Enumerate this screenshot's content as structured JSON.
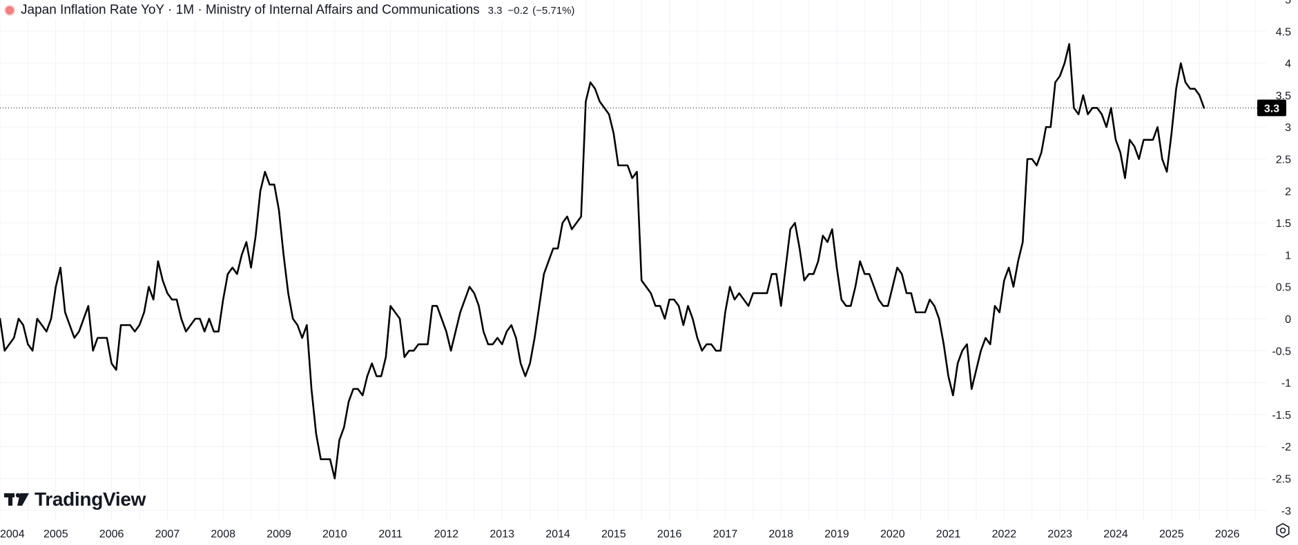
{
  "legend": {
    "title": "Japan Inflation Rate YoY · 1M · Ministry of Internal Affairs and Communications",
    "value": "3.3",
    "change": "−0.2",
    "change_pct": "(−5.71%)",
    "dot_color": "#ef5350"
  },
  "brand": {
    "name": "TradingView",
    "logo_icon": "tradingview-logo-icon"
  },
  "icons": {
    "settings": "settings-gear-icon"
  },
  "colors": {
    "line": "#000000",
    "grid": "#f0f3fa",
    "axis_text": "#131722",
    "price_label_bg": "#000000",
    "price_label_text": "#ffffff"
  },
  "chart_data": {
    "type": "line",
    "title": "Japan Inflation Rate YoY",
    "frequency": "1M",
    "source": "Ministry of Internal Affairs and Communications",
    "last_value": 3.3,
    "ylim": [
      -3.2,
      5.05
    ],
    "y_ticks": [
      "5",
      "4.5",
      "4",
      "3.5",
      "3",
      "2.5",
      "2",
      "1.5",
      "1",
      "0.5",
      "0",
      "-0.5",
      "-1",
      "-1.5",
      "-2",
      "-2.5",
      "-3"
    ],
    "x_ticks": [
      "2004",
      "2005",
      "2006",
      "2007",
      "2008",
      "2009",
      "2010",
      "2011",
      "2012",
      "2013",
      "2014",
      "2015",
      "2016",
      "2017",
      "2018",
      "2019",
      "2020",
      "2021",
      "2022",
      "2023",
      "2024",
      "2025",
      "2026"
    ],
    "grid": true,
    "series": [
      {
        "start_date": "2004-01",
        "values": [
          0.0,
          -0.5,
          -0.4,
          -0.3,
          0.0,
          -0.1,
          -0.4,
          -0.5,
          0.0,
          -0.1,
          -0.2,
          0.0,
          0.5,
          0.8,
          0.1,
          -0.1,
          -0.3,
          -0.2,
          0.0,
          0.2,
          -0.5,
          -0.3,
          -0.3,
          -0.3,
          -0.7,
          -0.8,
          -0.1,
          -0.1,
          -0.1,
          -0.2,
          -0.1,
          0.1,
          0.5,
          0.3,
          0.9,
          0.6,
          0.4,
          0.3,
          0.3,
          0.0,
          -0.2,
          -0.1,
          0.0,
          0.0,
          -0.2,
          0.0,
          -0.2,
          -0.2,
          0.3,
          0.7,
          0.8,
          0.7,
          1.0,
          1.2,
          0.8,
          1.3,
          2.0,
          2.3,
          2.1,
          2.1,
          1.7,
          1.0,
          0.4,
          0.0,
          -0.1,
          -0.3,
          -0.1,
          -1.1,
          -1.8,
          -2.2,
          -2.2,
          -2.2,
          -2.5,
          -1.9,
          -1.7,
          -1.3,
          -1.1,
          -1.1,
          -1.2,
          -0.9,
          -0.7,
          -0.9,
          -0.9,
          -0.6,
          0.2,
          0.1,
          0.0,
          -0.6,
          -0.5,
          -0.5,
          -0.4,
          -0.4,
          -0.4,
          0.2,
          0.2,
          0.0,
          -0.2,
          -0.5,
          -0.2,
          0.1,
          0.3,
          0.5,
          0.4,
          0.2,
          -0.2,
          -0.4,
          -0.4,
          -0.3,
          -0.4,
          -0.2,
          -0.1,
          -0.3,
          -0.7,
          -0.9,
          -0.7,
          -0.3,
          0.2,
          0.7,
          0.9,
          1.1,
          1.1,
          1.5,
          1.6,
          1.4,
          1.5,
          1.6,
          3.4,
          3.7,
          3.6,
          3.4,
          3.3,
          3.2,
          2.9,
          2.4,
          2.4,
          2.4,
          2.2,
          2.3,
          0.6,
          0.5,
          0.4,
          0.2,
          0.2,
          0.0,
          0.3,
          0.3,
          0.2,
          -0.1,
          0.2,
          0.0,
          -0.3,
          -0.5,
          -0.4,
          -0.4,
          -0.5,
          -0.5,
          0.1,
          0.5,
          0.3,
          0.4,
          0.3,
          0.2,
          0.4,
          0.4,
          0.4,
          0.4,
          0.7,
          0.7,
          0.2,
          0.8,
          1.4,
          1.5,
          1.1,
          0.6,
          0.7,
          0.7,
          0.9,
          1.3,
          1.2,
          1.4,
          0.8,
          0.3,
          0.2,
          0.2,
          0.5,
          0.9,
          0.7,
          0.7,
          0.5,
          0.3,
          0.2,
          0.2,
          0.5,
          0.8,
          0.7,
          0.4,
          0.4,
          0.1,
          0.1,
          0.1,
          0.3,
          0.2,
          0.0,
          -0.4,
          -0.9,
          -1.2,
          -0.7,
          -0.5,
          -0.4,
          -1.1,
          -0.8,
          -0.5,
          -0.3,
          -0.4,
          0.2,
          0.1,
          0.6,
          0.8,
          0.5,
          0.9,
          1.2,
          2.5,
          2.5,
          2.4,
          2.6,
          3.0,
          3.0,
          3.7,
          3.8,
          4.0,
          4.3,
          3.3,
          3.2,
          3.5,
          3.2,
          3.3,
          3.3,
          3.2,
          3.0,
          3.3,
          2.8,
          2.6,
          2.2,
          2.8,
          2.7,
          2.5,
          2.8,
          2.8,
          2.8,
          3.0,
          2.5,
          2.3,
          2.9,
          3.6,
          4.0,
          3.7,
          3.6,
          3.6,
          3.5,
          3.3
        ]
      }
    ]
  }
}
